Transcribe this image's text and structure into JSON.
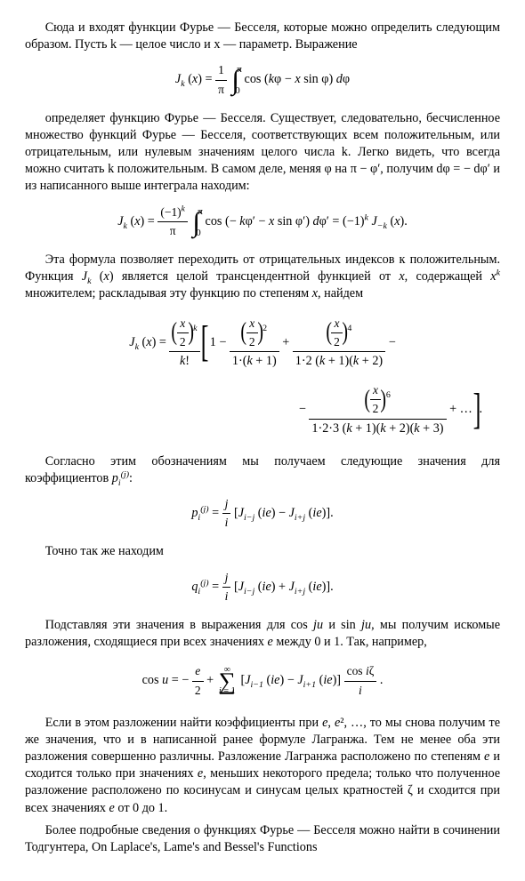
{
  "para1": "Сюда и входят функции Фурье — Бесселя, которые можно определить следующим образом. Пусть k — целое число и x — параметр. Выражение",
  "eq1": {
    "lhs": "J_k (x) =",
    "frac1_num": "1",
    "frac1_den": "π",
    "int_top": "π",
    "int_bot": "0",
    "integrand": "cos (kφ − x sin φ) dφ"
  },
  "para2": "определяет функцию Фурье — Бесселя. Существует, следовательно, бесчисленное множество функций Фурье — Бесселя, соответствующих всем положительным, или отрицательным, или нулевым значениям целого числа k. Легко видеть, что всегда можно считать k положительным. В самом деле, меняя φ на π − φ′, получим dφ = − dφ′ и из написанного выше интеграла находим:",
  "eq2": {
    "lhs": "J_k (x) =",
    "frac_num": "(−1)^k",
    "frac_den": "π",
    "int_top": "π",
    "int_bot": "0",
    "integrand": "cos (− kφ′ − x sin φ′) dφ′ = (−1)^k J_{−k} (x)."
  },
  "para3": "Эта формула позволяет переходить от отрицательных индексов к положительным. Функция J_k (x) является целой трансцендентной функцией от x, содержащей x^k множителем; раскладывая эту функцию по степеням x, найдем",
  "eq3": {
    "lead_num_inner_num": "x",
    "lead_num_inner_den": "2",
    "lead_exp": "k",
    "lead_den": "k!",
    "t0": "1 −",
    "t1_num_inner": "x/2",
    "t1_exp": "2",
    "t1_den": "1·(k + 1)",
    "t2_exp": "4",
    "t2_den": "1·2 (k + 1)(k + 2)",
    "line2_t3_exp": "6",
    "line2_t3_den": "1·2·3 (k + 1)(k + 2)(k + 3)",
    "tail": "+ …"
  },
  "para4": "Согласно этим обозначениям мы получаем следующие значения для коэффициентов p_i^{(j)}:",
  "eq4": {
    "lhs": "p_i^{(j)} =",
    "frac_num": "j",
    "frac_den": "i",
    "rhs": "[J_{i−j} (ie) − J_{i+j} (ie)]."
  },
  "para5": "Точно так же находим",
  "eq5": {
    "lhs": "q_i^{(j)} =",
    "frac_num": "j",
    "frac_den": "i",
    "rhs": "[J_{i−j} (ie) + J_{i+j} (ie)]."
  },
  "para6": "Подставляя эти значения в выражения для cos ju и sin ju, мы получим искомые разложения, сходящиеся при всех значениях e между 0 и 1. Так, например,",
  "eq6": {
    "lhs": "cos u = −",
    "f1_num": "e",
    "f1_den": "2",
    "plus": "+",
    "sum_top": "∞",
    "sum_bot": "i = 1",
    "bracket": "[J_{i−1} (ie) − J_{i+1} (ie)]",
    "f2_num": "cos iζ",
    "f2_den": "i",
    "end": "."
  },
  "para7": "Если в этом разложении найти коэффициенты при e, e², …, то мы снова получим те же значения, что и в написанной ранее формуле Лагранжа. Тем не менее оба эти разложения совершенно различны. Разложение Лагранжа расположено по степеням e и сходится только при значениях e, меньших некоторого предела; только что полученное разложение расположено по косинусам и синусам целых кратностей ζ и сходится при всех значениях e от 0 до 1.",
  "para8": "Более подробные сведения о функциях Фурье — Бесселя можно найти в сочинении Тодгунтера, On Laplace's, Lame's and Bessel's Functions",
  "style": {
    "text_color": "#000000",
    "background_color": "#ffffff",
    "body_fontsize": 14.2,
    "eq_font": "Times New Roman"
  }
}
